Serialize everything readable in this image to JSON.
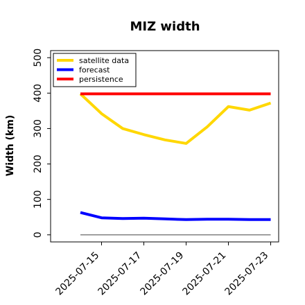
{
  "chart_data": {
    "type": "line",
    "title": "MIZ width",
    "xlabel": "",
    "ylabel": "Width (km)",
    "ylim": [
      -20,
      520
    ],
    "yticks": [
      0,
      100,
      200,
      300,
      400,
      500
    ],
    "x": [
      "2025-07-14",
      "2025-07-15",
      "2025-07-16",
      "2025-07-17",
      "2025-07-18",
      "2025-07-19",
      "2025-07-20",
      "2025-07-21",
      "2025-07-22",
      "2025-07-23"
    ],
    "xticks": [
      "2025-07-15",
      "2025-07-17",
      "2025-07-19",
      "2025-07-21",
      "2025-07-23"
    ],
    "highlighted_tick": "2025-07-15",
    "highlight_color": "#228b22",
    "baseline": 0,
    "series": [
      {
        "name": "satellite data",
        "color": "#ffd700",
        "values": [
          398,
          342,
          300,
          283,
          268,
          258,
          305,
          362,
          352,
          372
        ]
      },
      {
        "name": "forecast",
        "color": "#0000ff",
        "values": [
          63,
          48,
          46,
          47,
          45,
          43,
          44,
          44,
          43,
          43
        ]
      },
      {
        "name": "persistence",
        "color": "#ff0000",
        "values": [
          398,
          398,
          398,
          398,
          398,
          398,
          398,
          398,
          398,
          398
        ]
      }
    ],
    "legend_position": "top-left",
    "grid": false
  }
}
